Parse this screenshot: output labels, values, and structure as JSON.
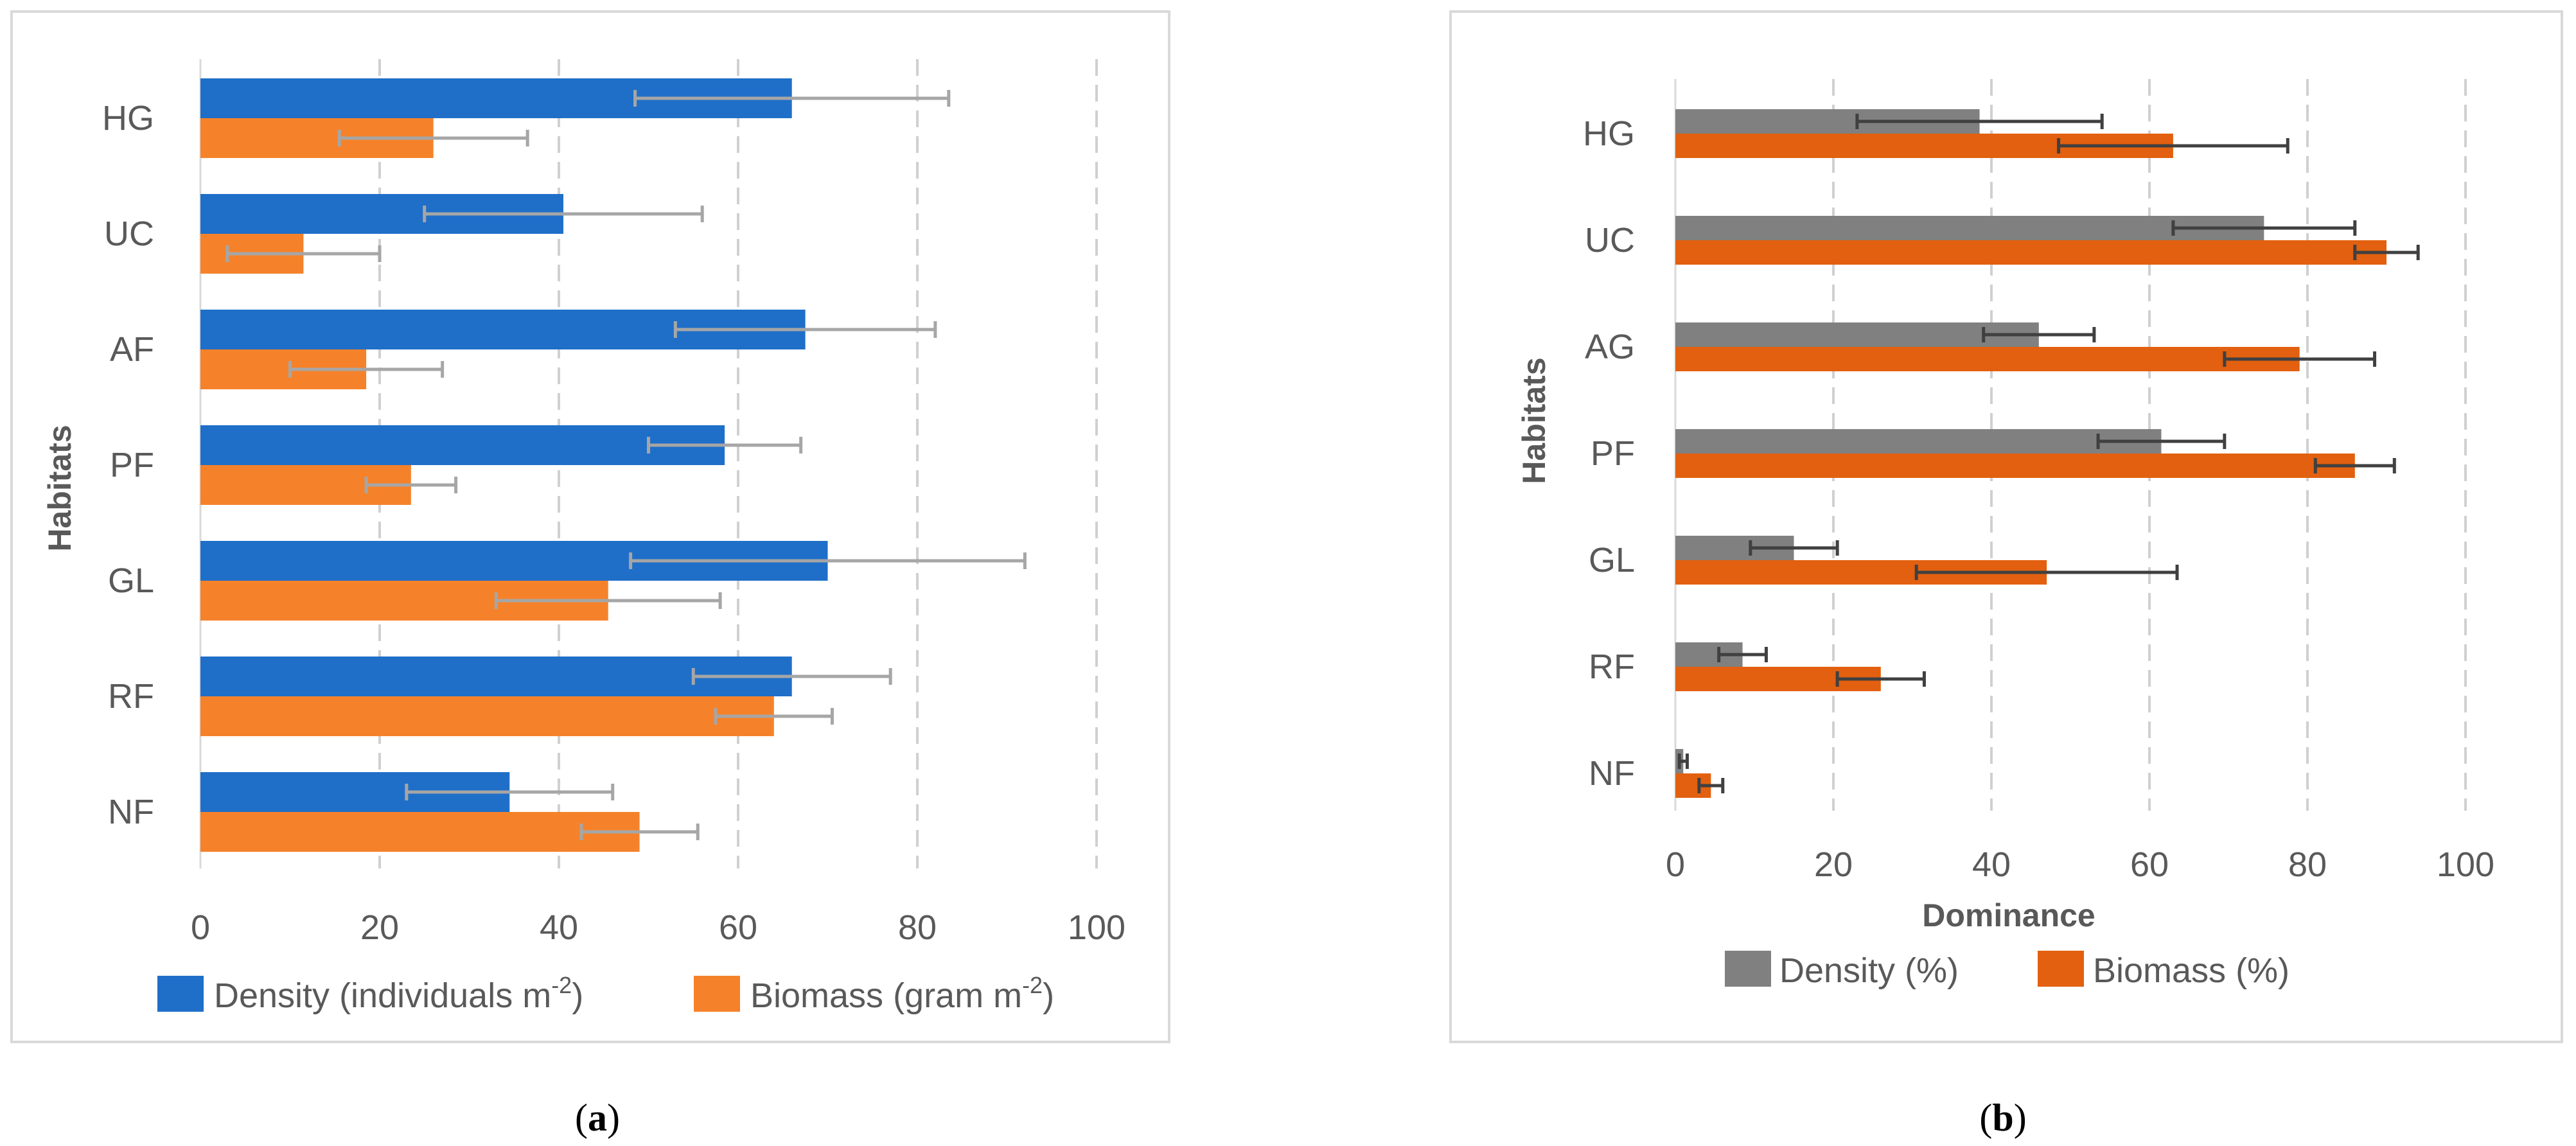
{
  "colors": {
    "a_density": "#1f6fc8",
    "a_biomass": "#f5822a",
    "a_error": "#a6a6a6",
    "b_density": "#808080",
    "b_biomass": "#e2600f",
    "b_error": "#404040",
    "grid": "#d0d0d0",
    "panel_border": "#d9d9d9"
  },
  "captions": [
    {
      "open": "(",
      "letter": "a",
      "close": ")"
    },
    {
      "open": "(",
      "letter": "b",
      "close": ")"
    }
  ],
  "chart_data": [
    {
      "id": "a",
      "type": "bar",
      "orientation": "horizontal",
      "title": "",
      "xlabel": "",
      "ylabel": "Habitats",
      "xlim": [
        0,
        100
      ],
      "xticks": [
        0,
        20,
        40,
        60,
        80,
        100
      ],
      "grid": true,
      "legend_position": "bottom",
      "categories": [
        "HG",
        "UC",
        "AF",
        "PF",
        "GL",
        "RF",
        "NF"
      ],
      "series": [
        {
          "name": "Density (individuals m",
          "superscript": "-2",
          "name_suffix": ")",
          "values": [
            66,
            40.5,
            67.5,
            58.5,
            70,
            66,
            34.5
          ],
          "errors": [
            17.5,
            15.5,
            14.5,
            8.5,
            22,
            11,
            11.5
          ]
        },
        {
          "name": "Biomass (gram m",
          "superscript": "-2",
          "name_suffix": ")",
          "values": [
            26,
            11.5,
            18.5,
            23.5,
            45.5,
            64,
            49
          ],
          "errors": [
            10.5,
            8.5,
            8.5,
            5,
            12.5,
            6.5,
            6.5
          ]
        }
      ]
    },
    {
      "id": "b",
      "type": "bar",
      "orientation": "horizontal",
      "title": "",
      "xlabel": "Dominance",
      "ylabel": "Habitats",
      "xlim": [
        0,
        100
      ],
      "xticks": [
        0,
        20,
        40,
        60,
        80,
        100
      ],
      "grid": true,
      "legend_position": "bottom",
      "categories": [
        "HG",
        "UC",
        "AG",
        "PF",
        "GL",
        "RF",
        "NF"
      ],
      "series": [
        {
          "name": "Density (%)",
          "values": [
            38.5,
            74.5,
            46,
            61.5,
            15,
            8.5,
            1
          ],
          "errors": [
            15.5,
            11.5,
            7,
            8,
            5.5,
            3,
            0.5
          ]
        },
        {
          "name": "Biomass (%)",
          "values": [
            63,
            90,
            79,
            86,
            47,
            26,
            4.5
          ],
          "errors": [
            14.5,
            4,
            9.5,
            5,
            16.5,
            5.5,
            1.5
          ]
        }
      ]
    }
  ]
}
